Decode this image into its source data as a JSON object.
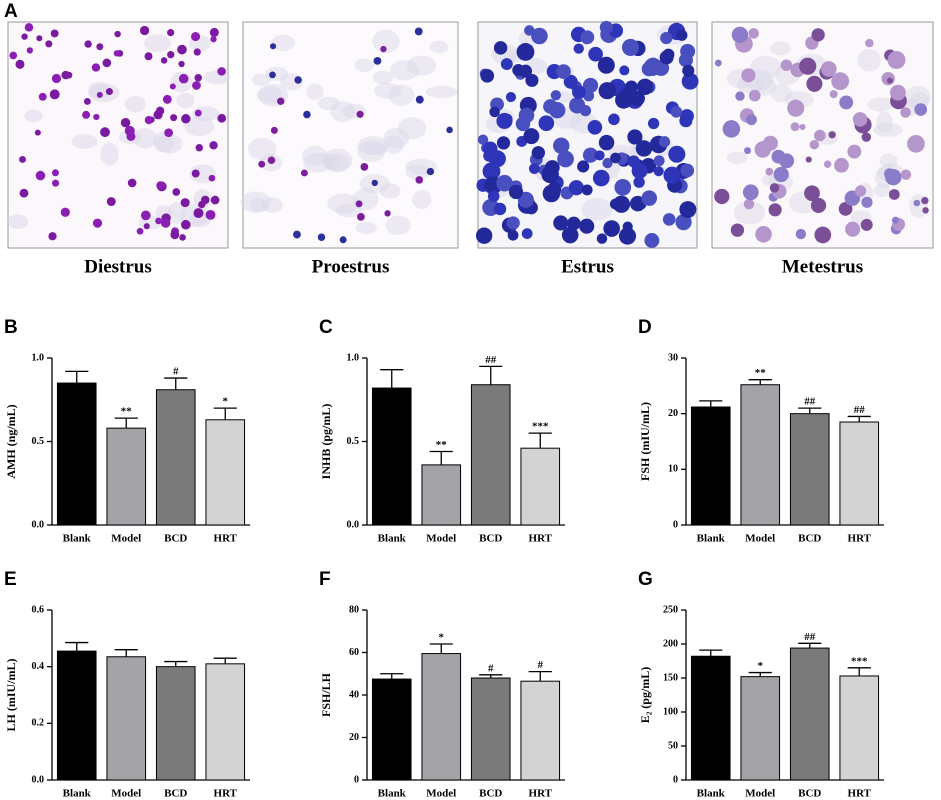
{
  "panel_a": {
    "label": "A",
    "captions": [
      "Diestrus",
      "Proestrus",
      "Estrus",
      "Metestrus"
    ]
  },
  "chart_data": [
    {
      "type": "bar",
      "label": "B",
      "ylabel": "AMH (ng/mL)",
      "categories": [
        "Blank",
        "Model",
        "BCD",
        "HRT"
      ],
      "values": [
        0.85,
        0.58,
        0.81,
        0.63
      ],
      "errors": [
        0.07,
        0.06,
        0.07,
        0.07
      ],
      "annotations": [
        null,
        "**",
        "#",
        "*"
      ],
      "colors": [
        "#000000",
        "#a3a3a8",
        "#7a7a7a",
        "#d3d3d3"
      ],
      "ylim": [
        0,
        1.0
      ],
      "yticks": [
        {
          "value": 0,
          "label": "0.0"
        },
        0.5,
        {
          "value": 1.0,
          "label": "1.0"
        }
      ]
    },
    {
      "type": "bar",
      "label": "C",
      "ylabel": "INHB (pg/mL)",
      "categories": [
        "Blank",
        "Model",
        "BCD",
        "HRT"
      ],
      "values": [
        0.82,
        0.36,
        0.84,
        0.46
      ],
      "errors": [
        0.11,
        0.08,
        0.11,
        0.09
      ],
      "annotations": [
        null,
        "**",
        "##",
        "***"
      ],
      "colors": [
        "#000000",
        "#a3a3a8",
        "#7a7a7a",
        "#d3d3d3"
      ],
      "ylim": [
        0,
        1.0
      ],
      "yticks": [
        {
          "value": 0,
          "label": "0.0"
        },
        0.5,
        {
          "value": 1.0,
          "label": "1.0"
        }
      ]
    },
    {
      "type": "bar",
      "label": "D",
      "ylabel": "FSH (mIU/mL)",
      "categories": [
        "Blank",
        "Model",
        "BCD",
        "HRT"
      ],
      "values": [
        21.2,
        25.2,
        20.0,
        18.5
      ],
      "errors": [
        1.1,
        0.9,
        1.0,
        1.0
      ],
      "annotations": [
        null,
        "**",
        "##",
        "##"
      ],
      "colors": [
        "#000000",
        "#a3a3a8",
        "#7a7a7a",
        "#d3d3d3"
      ],
      "ylim": [
        0,
        30
      ],
      "yticks": [
        0,
        10,
        20,
        30
      ]
    },
    {
      "type": "bar",
      "label": "E",
      "ylabel": "LH (mIU/mL)",
      "categories": [
        "Blank",
        "Model",
        "BCD",
        "HRT"
      ],
      "values": [
        0.455,
        0.435,
        0.4,
        0.41
      ],
      "errors": [
        0.03,
        0.025,
        0.018,
        0.02
      ],
      "annotations": [
        null,
        null,
        null,
        null
      ],
      "colors": [
        "#000000",
        "#a3a3a8",
        "#7a7a7a",
        "#d3d3d3"
      ],
      "ylim": [
        0,
        0.6
      ],
      "yticks": [
        {
          "value": 0,
          "label": "0.0"
        },
        0.2,
        0.4,
        0.6
      ]
    },
    {
      "type": "bar",
      "label": "F",
      "ylabel": "FSH/LH",
      "categories": [
        "Blank",
        "Model",
        "BCD",
        "HRT"
      ],
      "values": [
        47.5,
        59.5,
        48.0,
        46.5
      ],
      "errors": [
        2.5,
        4.5,
        1.5,
        4.5
      ],
      "annotations": [
        null,
        "*",
        "#",
        "#"
      ],
      "colors": [
        "#000000",
        "#a3a3a8",
        "#7a7a7a",
        "#d3d3d3"
      ],
      "ylim": [
        0,
        80
      ],
      "yticks": [
        0,
        20,
        40,
        60,
        80
      ]
    },
    {
      "type": "bar",
      "label": "G",
      "ylabel": "E₂ (pg/mL)",
      "categories": [
        "Blank",
        "Model",
        "BCD",
        "HRT"
      ],
      "values": [
        182,
        152,
        194,
        153
      ],
      "errors": [
        9,
        6,
        7,
        12
      ],
      "annotations": [
        null,
        "*",
        "##",
        "***"
      ],
      "colors": [
        "#000000",
        "#a3a3a8",
        "#7a7a7a",
        "#d3d3d3"
      ],
      "ylim": [
        0,
        250
      ],
      "yticks": [
        0,
        50,
        100,
        150,
        200,
        250
      ]
    }
  ]
}
